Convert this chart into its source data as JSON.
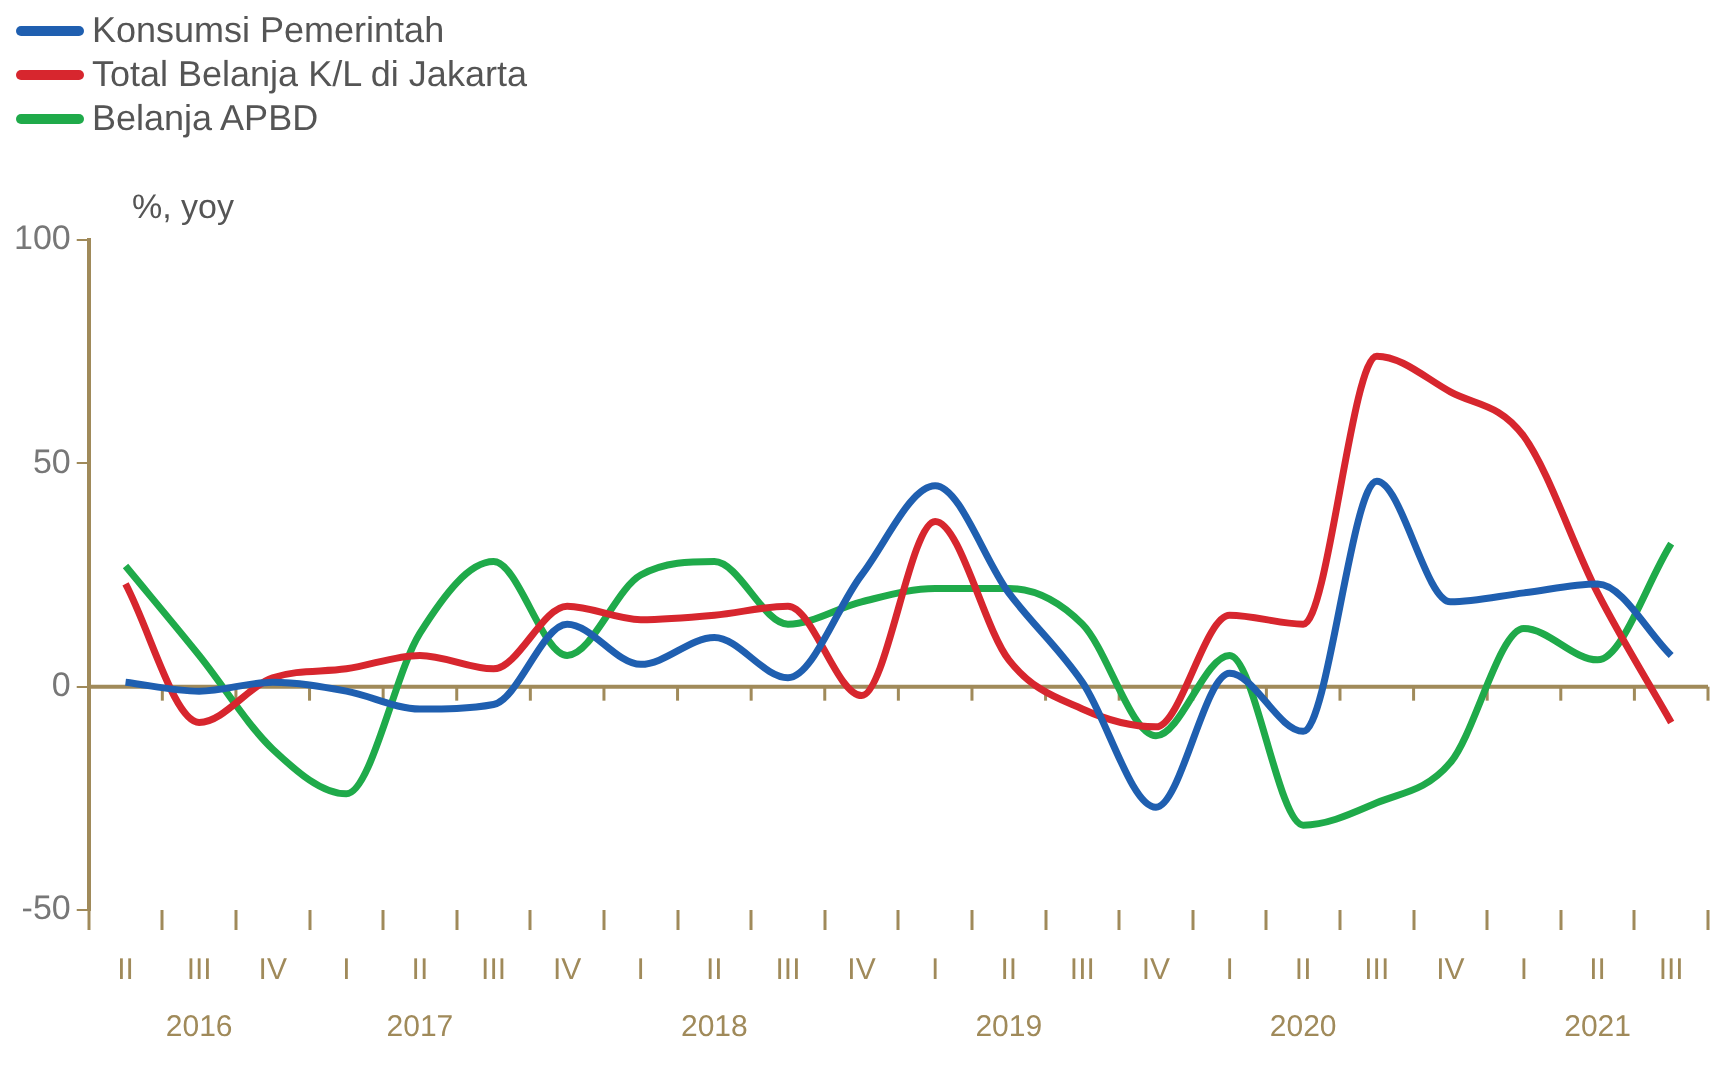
{
  "chart_data": {
    "type": "line",
    "ylabel": "%, yoy",
    "categories": [
      "II",
      "III\n2016",
      "IV",
      "I",
      "II\n2017",
      "III",
      "IV",
      "I",
      "II\n2018",
      "III",
      "IV",
      "I",
      "II\n2019",
      "III",
      "IV",
      "I",
      "II\n2020",
      "III",
      "IV",
      "I",
      "II\n2021",
      "III"
    ],
    "series": [
      {
        "name": "Konsumsi Pemerintah",
        "color": "#1f5fb0",
        "values": [
          1,
          -1,
          1,
          -1,
          -5,
          -4,
          14,
          5,
          11,
          2,
          25,
          45,
          21,
          1,
          -27,
          3,
          -10,
          46,
          19,
          21,
          23,
          7
        ]
      },
      {
        "name": "Total Belanja K/L di Jakarta",
        "color": "#d7262e",
        "values": [
          23,
          -8,
          2,
          4,
          7,
          4,
          18,
          15,
          16,
          18,
          -2,
          37,
          6,
          -5,
          -9,
          16,
          14,
          74,
          66,
          56,
          21,
          -8
        ]
      },
      {
        "name": "Belanja APBD",
        "color": "#1faa4a",
        "values": [
          27,
          7,
          -14,
          -24,
          12,
          28,
          7,
          25,
          28,
          14,
          19,
          22,
          22,
          14,
          -11,
          7,
          -31,
          -26,
          -17,
          13,
          6,
          32
        ]
      }
    ],
    "ylim": [
      -50,
      100
    ],
    "yticks": [
      -50,
      0,
      50,
      100
    ],
    "grid": false,
    "legend": "top left",
    "marker": "none",
    "line_style": "solid",
    "ref_lines": [
      {
        "axis": "y",
        "value": 0,
        "color": "#a08a5a"
      }
    ]
  }
}
